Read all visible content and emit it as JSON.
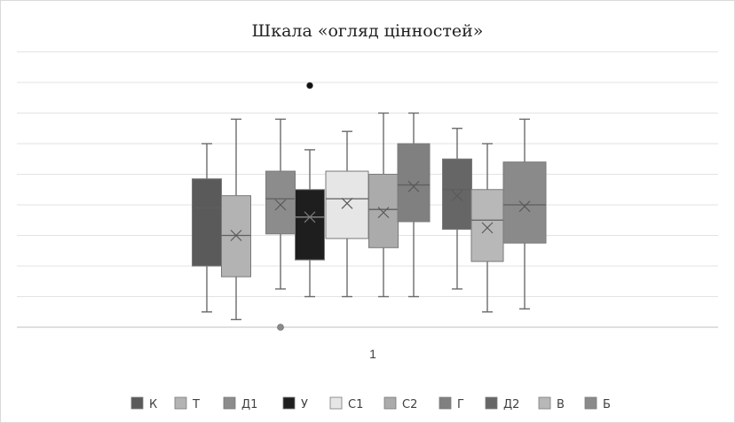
{
  "chart_data": {
    "type": "box",
    "title": "Шкала «огляд цінностей»",
    "categories": [
      "1"
    ],
    "xlabel": "",
    "ylabel": "",
    "ylim": [
      0,
      9
    ],
    "grid": true,
    "legend": "bottom",
    "series": [
      {
        "name": "К",
        "color": "#5a5a5a",
        "whisker_low": 0.5,
        "q1": 2.0,
        "median": 3.9,
        "q3": 4.85,
        "whisker_high": 6.0,
        "mean": 3.4,
        "outliers": []
      },
      {
        "name": "Т",
        "color": "#b3b3b3",
        "whisker_low": 0.25,
        "q1": 1.65,
        "median": 3.0,
        "q3": 4.3,
        "whisker_high": 6.8,
        "mean": 3.0,
        "outliers": []
      },
      {
        "name": "Д1",
        "color": "#8c8c8c",
        "whisker_low": 1.25,
        "q1": 3.05,
        "median": 4.2,
        "q3": 5.1,
        "whisker_high": 6.8,
        "mean": 4.0,
        "outliers": [
          0.0
        ]
      },
      {
        "name": "У",
        "color": "#1e1e1e",
        "whisker_low": 1.0,
        "q1": 2.2,
        "median": 3.6,
        "q3": 4.5,
        "whisker_high": 5.8,
        "mean": 3.6,
        "outliers": [
          7.9
        ]
      },
      {
        "name": "С1",
        "color": "#e6e6e6",
        "whisker_low": 1.0,
        "q1": 2.9,
        "median": 4.2,
        "q3": 5.1,
        "whisker_high": 6.4,
        "mean": 4.05,
        "outliers": []
      },
      {
        "name": "С2",
        "color": "#ababab",
        "whisker_low": 1.0,
        "q1": 2.6,
        "median": 3.85,
        "q3": 5.0,
        "whisker_high": 7.0,
        "mean": 3.75,
        "outliers": []
      },
      {
        "name": "Г",
        "color": "#808080",
        "whisker_low": 1.0,
        "q1": 3.45,
        "median": 4.65,
        "q3": 6.0,
        "whisker_high": 7.0,
        "mean": 4.6,
        "outliers": []
      },
      {
        "name": "Д2",
        "color": "#666666",
        "whisker_low": 1.25,
        "q1": 3.2,
        "median": 4.5,
        "q3": 5.5,
        "whisker_high": 6.5,
        "mean": 4.3,
        "outliers": []
      },
      {
        "name": "В",
        "color": "#b8b8b8",
        "whisker_low": 0.5,
        "q1": 2.15,
        "median": 3.5,
        "q3": 4.5,
        "whisker_high": 6.0,
        "mean": 3.25,
        "outliers": []
      },
      {
        "name": "Б",
        "color": "#8a8a8a",
        "whisker_low": 0.6,
        "q1": 2.75,
        "median": 4.0,
        "q3": 5.4,
        "whisker_high": 6.8,
        "mean": 3.95,
        "outliers": []
      }
    ]
  }
}
